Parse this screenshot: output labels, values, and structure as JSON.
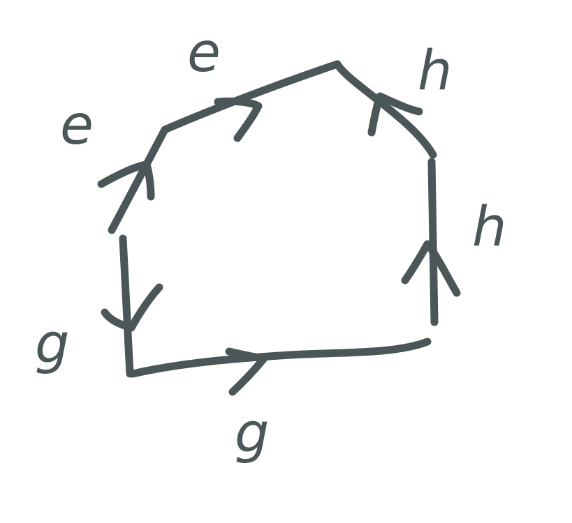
{
  "diagram": {
    "ink_color": "#4a5658",
    "background": "#ffffff",
    "edges": [
      {
        "label": "e",
        "direction_icon": "arrow-up-right-icon"
      },
      {
        "label": "e",
        "direction_icon": "arrow-right-icon"
      },
      {
        "label": "h",
        "direction_icon": "arrow-up-left-icon"
      },
      {
        "label": "h",
        "direction_icon": "arrow-up-icon"
      },
      {
        "label": "g",
        "direction_icon": "arrow-right-icon"
      },
      {
        "label": "g",
        "direction_icon": "arrow-down-icon"
      }
    ]
  }
}
